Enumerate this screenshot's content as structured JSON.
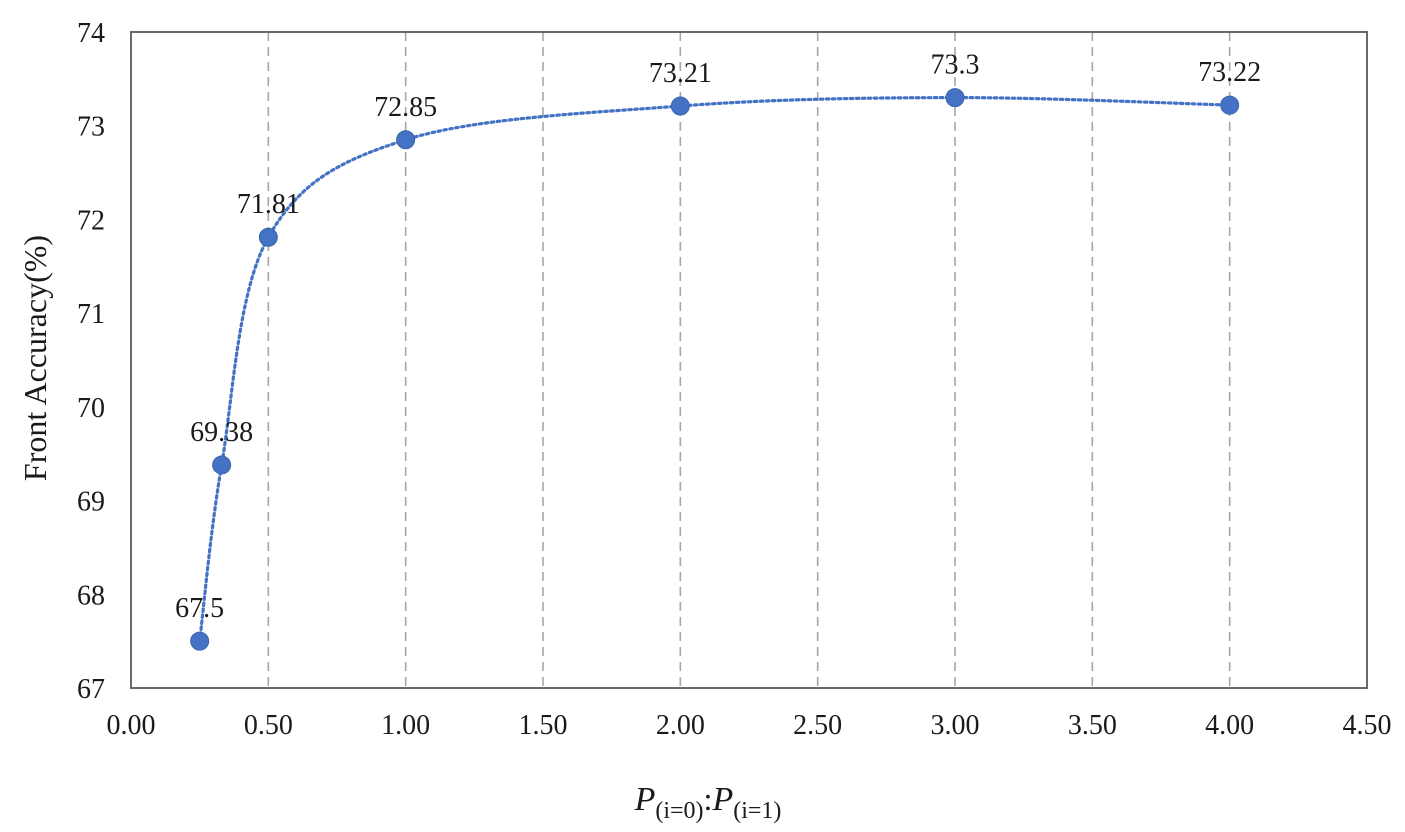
{
  "chart_data": {
    "type": "scatter",
    "title": "",
    "xlabel": {
      "p": "P",
      "sub0": "(i=0)",
      "sep": ":",
      "sub1": "(i=1)"
    },
    "ylabel": "Front Accuracy(%)",
    "xlim": [
      0,
      4.5
    ],
    "ylim": [
      67,
      74
    ],
    "x_ticks": [
      "0.00",
      "0.50",
      "1.00",
      "1.50",
      "2.00",
      "2.50",
      "3.00",
      "3.50",
      "4.00",
      "4.50"
    ],
    "x_tick_values": [
      0,
      0.5,
      1,
      1.5,
      2,
      2.5,
      3,
      3.5,
      4,
      4.5
    ],
    "y_ticks": [
      "67",
      "68",
      "69",
      "70",
      "71",
      "72",
      "73",
      "74"
    ],
    "y_tick_values": [
      67,
      68,
      69,
      70,
      71,
      72,
      73,
      74
    ],
    "grid": "vertical dashed",
    "legend": "none",
    "trendline": "dotted smooth",
    "series": [
      {
        "x": [
          0.25,
          0.33,
          0.5,
          1,
          2,
          3,
          4
        ],
        "y": [
          67.5,
          69.38,
          71.81,
          72.85,
          73.21,
          73.3,
          73.22
        ],
        "labels": [
          "67.5",
          "69.38",
          "71.81",
          "72.85",
          "73.21",
          "73.3",
          "73.22"
        ]
      }
    ],
    "colors": {
      "marker": "#4472C4",
      "grid": "#a6a6a6",
      "axis": "#595959",
      "text": "#1a1a1a"
    }
  }
}
